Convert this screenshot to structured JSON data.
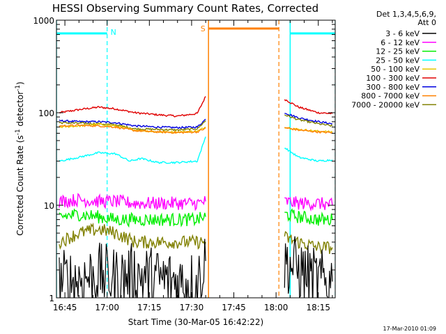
{
  "chart_data": {
    "type": "line",
    "title": "HESSI Observing Summary Count Rates, Corrected",
    "xlabel": "Start Time (30-Mar-05 16:42:22)",
    "ylabel": "Corrected Count Rate (s⁻¹ detector⁻¹)",
    "ylabel_parts": [
      "Corrected Count Rate (s",
      "-1",
      " detector",
      "-1",
      ")"
    ],
    "yscale": "log",
    "xlim": [
      "16:42",
      "18:21"
    ],
    "ylim": [
      1,
      1000
    ],
    "x_ticks": [
      "16:45",
      "17:00",
      "17:15",
      "17:30",
      "17:45",
      "18:00",
      "18:15"
    ],
    "y_ticks": [
      "1",
      "10",
      "100",
      "1000"
    ],
    "legend": {
      "position": "right",
      "header": [
        "Det 1,3,4,5,6,9,",
        "Att 0"
      ],
      "entries": [
        {
          "label": "3 - 6 keV",
          "color": "#000000"
        },
        {
          "label": "6 - 12 keV",
          "color": "#ff00ff"
        },
        {
          "label": "12 - 25 keV",
          "color": "#00ee00"
        },
        {
          "label": "25 - 50 keV",
          "color": "#00ffff"
        },
        {
          "label": "50 - 100 keV",
          "color": "#e6c800"
        },
        {
          "label": "100 - 300 keV",
          "color": "#e00000"
        },
        {
          "label": "300 - 800 keV",
          "color": "#0000e0"
        },
        {
          "label": "800 - 7000 keV",
          "color": "#ff8000"
        },
        {
          "label": "7000 - 20000 keV",
          "color": "#808000"
        }
      ]
    },
    "annotations": [
      {
        "label": "N",
        "color": "#00ffff",
        "x": "16:42",
        "x_end": "17:00"
      },
      {
        "label": "",
        "color": "#00ffff",
        "x": "18:05",
        "x_end": "18:21"
      },
      {
        "label": "S",
        "color": "#ff8000",
        "x": "17:36",
        "x_end": "18:01"
      }
    ],
    "gaps": [
      {
        "from": "17:36",
        "to": "18:02"
      }
    ],
    "series": [
      {
        "color": "#e00000",
        "points": [
          [
            "16:43",
            100
          ],
          [
            "16:50",
            108
          ],
          [
            "16:57",
            115
          ],
          [
            "17:03",
            110
          ],
          [
            "17:10",
            100
          ],
          [
            "17:18",
            95
          ],
          [
            "17:25",
            92
          ],
          [
            "17:32",
            98
          ],
          [
            "17:35",
            150
          ],
          [
            "18:03",
            140
          ],
          [
            "18:08",
            115
          ],
          [
            "18:15",
            100
          ],
          [
            "18:20",
            98
          ]
        ]
      },
      {
        "color": "#0000e0",
        "points": [
          [
            "16:43",
            82
          ],
          [
            "16:50",
            80
          ],
          [
            "16:57",
            80
          ],
          [
            "17:03",
            78
          ],
          [
            "17:10",
            72
          ],
          [
            "17:18",
            70
          ],
          [
            "17:25",
            69
          ],
          [
            "17:32",
            70
          ],
          [
            "17:35",
            85
          ],
          [
            "18:03",
            100
          ],
          [
            "18:08",
            88
          ],
          [
            "18:15",
            80
          ],
          [
            "18:20",
            76
          ]
        ]
      },
      {
        "color": "#808000",
        "points": [
          [
            "16:43",
            78
          ],
          [
            "16:50",
            77
          ],
          [
            "16:57",
            76
          ],
          [
            "17:03",
            74
          ],
          [
            "17:10",
            67
          ],
          [
            "17:18",
            66
          ],
          [
            "17:25",
            65
          ],
          [
            "17:32",
            67
          ],
          [
            "17:35",
            82
          ],
          [
            "18:03",
            95
          ],
          [
            "18:08",
            84
          ],
          [
            "18:15",
            76
          ],
          [
            "18:20",
            72
          ]
        ]
      },
      {
        "color": "#e6c800",
        "points": [
          [
            "16:43",
            70
          ],
          [
            "16:50",
            72
          ],
          [
            "16:57",
            75
          ],
          [
            "17:03",
            72
          ],
          [
            "17:10",
            65
          ],
          [
            "17:18",
            62
          ],
          [
            "17:25",
            62
          ],
          [
            "17:32",
            63
          ],
          [
            "17:35",
            70
          ],
          [
            "18:03",
            70
          ],
          [
            "18:08",
            66
          ],
          [
            "18:15",
            63
          ],
          [
            "18:20",
            62
          ]
        ]
      },
      {
        "color": "#ff8000",
        "points": [
          [
            "16:43",
            72
          ],
          [
            "16:50",
            73
          ],
          [
            "16:57",
            72
          ],
          [
            "17:03",
            70
          ],
          [
            "17:10",
            64
          ],
          [
            "17:18",
            62
          ],
          [
            "17:25",
            61
          ],
          [
            "17:32",
            62
          ],
          [
            "17:35",
            68
          ],
          [
            "18:03",
            69
          ],
          [
            "18:08",
            65
          ],
          [
            "18:15",
            62
          ],
          [
            "18:20",
            61
          ]
        ]
      },
      {
        "color": "#00ffff",
        "points": [
          [
            "16:43",
            30
          ],
          [
            "16:50",
            33
          ],
          [
            "16:57",
            37
          ],
          [
            "17:03",
            36
          ],
          [
            "17:08",
            30
          ],
          [
            "17:12",
            32
          ],
          [
            "17:18",
            29
          ],
          [
            "17:25",
            29
          ],
          [
            "17:32",
            30
          ],
          [
            "17:35",
            55
          ],
          [
            "18:03",
            42
          ],
          [
            "18:08",
            33
          ],
          [
            "18:15",
            30
          ],
          [
            "18:20",
            31
          ]
        ]
      },
      {
        "color": "#ff00ff",
        "points": [
          [
            "16:43",
            11
          ],
          [
            "16:50",
            11.5
          ],
          [
            "16:57",
            11
          ],
          [
            "17:03",
            11
          ],
          [
            "17:10",
            10.5
          ],
          [
            "17:18",
            10.5
          ],
          [
            "17:25",
            10.5
          ],
          [
            "17:32",
            10.5
          ],
          [
            "17:35",
            11
          ],
          [
            "18:03",
            11
          ],
          [
            "18:08",
            10.5
          ],
          [
            "18:15",
            10.5
          ],
          [
            "18:20",
            10
          ]
        ]
      },
      {
        "color": "#00ee00",
        "points": [
          [
            "16:43",
            7.5
          ],
          [
            "16:50",
            8
          ],
          [
            "16:57",
            7.5
          ],
          [
            "17:03",
            7
          ],
          [
            "17:10",
            7
          ],
          [
            "17:18",
            7
          ],
          [
            "17:25",
            7
          ],
          [
            "17:32",
            7
          ],
          [
            "17:35",
            7.5
          ],
          [
            "18:03",
            8
          ],
          [
            "18:08",
            7.5
          ],
          [
            "18:15",
            7
          ],
          [
            "18:20",
            7
          ]
        ]
      },
      {
        "color": "#808000",
        "points": [
          [
            "16:43",
            4
          ],
          [
            "16:50",
            5
          ],
          [
            "16:57",
            5.5
          ],
          [
            "17:03",
            5
          ],
          [
            "17:10",
            4
          ],
          [
            "17:18",
            4
          ],
          [
            "17:25",
            4
          ],
          [
            "17:32",
            4
          ],
          [
            "17:35",
            4
          ],
          [
            "18:03",
            4.5
          ],
          [
            "18:08",
            4
          ],
          [
            "18:15",
            3.5
          ],
          [
            "18:20",
            3.5
          ]
        ]
      },
      {
        "color": "#000000",
        "points": [
          [
            "16:43",
            1.5
          ],
          [
            "16:50",
            1.6
          ],
          [
            "16:57",
            1.8
          ],
          [
            "17:03",
            1.6
          ],
          [
            "17:10",
            1.8
          ],
          [
            "17:18",
            1.6
          ],
          [
            "17:25",
            1.5
          ],
          [
            "17:32",
            1.5
          ],
          [
            "17:35",
            2.5
          ],
          [
            "18:03",
            2.5
          ],
          [
            "18:08",
            2
          ],
          [
            "18:15",
            1.5
          ],
          [
            "18:20",
            1.5
          ]
        ]
      }
    ]
  },
  "footer": {
    "timestamp": "17-Mar-2010 01:09"
  }
}
